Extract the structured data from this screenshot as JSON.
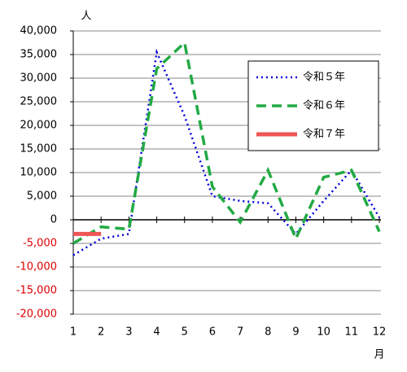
{
  "chart_data": {
    "type": "line",
    "y_label": "人",
    "x_label": "月",
    "categories": [
      "1",
      "2",
      "3",
      "4",
      "5",
      "6",
      "7",
      "8",
      "9",
      "10",
      "11",
      "12"
    ],
    "series": [
      {
        "name": "令和５年",
        "color": "#0000dd",
        "style": "dotted",
        "values": [
          -7500,
          -4000,
          -3000,
          35500,
          22000,
          5000,
          4000,
          3500,
          -3000,
          4000,
          10500,
          500
        ]
      },
      {
        "name": "令和６年",
        "color": "#22aa44",
        "style": "dashed",
        "values": [
          -5000,
          -1500,
          -2000,
          32000,
          37500,
          7000,
          -500,
          10500,
          -4000,
          9000,
          10500,
          -2500
        ]
      },
      {
        "name": "令和７年",
        "color": "#ee5555",
        "style": "solid",
        "values": [
          -3000,
          -3000,
          null,
          null,
          null,
          null,
          null,
          null,
          null,
          null,
          null,
          null
        ]
      }
    ],
    "ylim": [
      -20000,
      40000
    ],
    "yticks": [
      {
        "value": 40000,
        "label": "40,000"
      },
      {
        "value": 35000,
        "label": "35,000"
      },
      {
        "value": 30000,
        "label": "30,000"
      },
      {
        "value": 25000,
        "label": "25,000"
      },
      {
        "value": 20000,
        "label": "20,000"
      },
      {
        "value": 15000,
        "label": "15,000"
      },
      {
        "value": 10000,
        "label": "10,000"
      },
      {
        "value": 5000,
        "label": "5,000"
      },
      0,
      {
        "value": -5000,
        "label": "-5,000"
      },
      {
        "value": -10000,
        "label": "-10,000"
      },
      {
        "value": -15000,
        "label": "-15,000"
      },
      {
        "value": -20000,
        "label": "-20,000"
      }
    ],
    "grid": true,
    "negative_tick_color": "#dd0000",
    "legend": "upper right"
  }
}
